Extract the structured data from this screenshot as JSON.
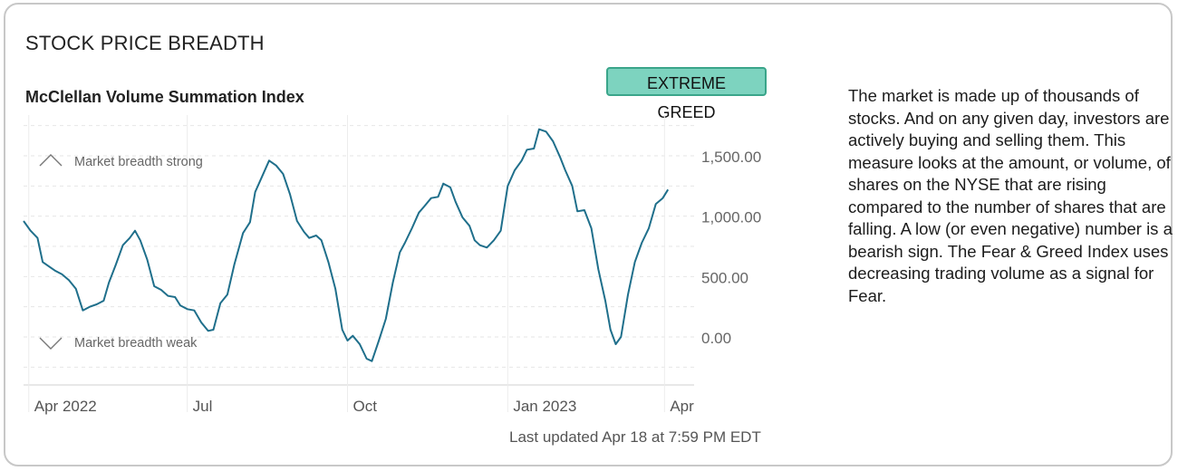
{
  "header": {
    "section_title": "STOCK PRICE BREADTH",
    "chart_title": "McClellan Volume Summation Index",
    "rating_badge": "EXTREME GREED",
    "badge_bg": "#7dd3bf",
    "badge_border": "#3aa58a"
  },
  "footer": {
    "last_updated": "Last updated Apr 18 at 7:59 PM EDT"
  },
  "description": "The market is made up of thousands of stocks. And on any given day, investors are actively buying and selling them. This measure looks at the amount, or volume, of shares on the NYSE that are rising compared to the number of shares that are falling. A low (or even negative) number is a bearish sign. The Fear & Greed Index uses decreasing trading volume as a signal for Fear.",
  "chart_data": {
    "type": "line",
    "title": "McClellan Volume Summation Index",
    "line_color": "#1f6f8b",
    "ylim": [
      -400,
      1800
    ],
    "y_ticks": [
      {
        "value": 0,
        "label": "0.00"
      },
      {
        "value": 500,
        "label": "500.00"
      },
      {
        "value": 1000,
        "label": "1,000.00"
      },
      {
        "value": 1500,
        "label": "1,500.00"
      }
    ],
    "x_ticks": [
      {
        "date": "2022-04-01",
        "label": "Apr 2022"
      },
      {
        "date": "2022-07-01",
        "label": "Jul"
      },
      {
        "date": "2022-10-01",
        "label": "Oct"
      },
      {
        "date": "2023-01-01",
        "label": "Jan 2023"
      },
      {
        "date": "2023-04-01",
        "label": "Apr"
      }
    ],
    "x_range": [
      "2022-03-29",
      "2023-04-18"
    ],
    "annotations": {
      "strong": "Market breadth strong",
      "weak": "Market breadth weak"
    },
    "series": [
      {
        "values": [
          [
            "2022-03-29",
            960
          ],
          [
            "2022-04-02",
            880
          ],
          [
            "2022-04-06",
            820
          ],
          [
            "2022-04-09",
            620
          ],
          [
            "2022-04-13",
            580
          ],
          [
            "2022-04-16",
            550
          ],
          [
            "2022-04-20",
            520
          ],
          [
            "2022-04-24",
            470
          ],
          [
            "2022-04-28",
            400
          ],
          [
            "2022-05-02",
            220
          ],
          [
            "2022-05-06",
            250
          ],
          [
            "2022-05-10",
            270
          ],
          [
            "2022-05-14",
            300
          ],
          [
            "2022-05-17",
            450
          ],
          [
            "2022-05-21",
            600
          ],
          [
            "2022-05-25",
            760
          ],
          [
            "2022-05-29",
            820
          ],
          [
            "2022-06-01",
            880
          ],
          [
            "2022-06-04",
            800
          ],
          [
            "2022-06-08",
            640
          ],
          [
            "2022-06-12",
            420
          ],
          [
            "2022-06-16",
            390
          ],
          [
            "2022-06-20",
            340
          ],
          [
            "2022-06-24",
            330
          ],
          [
            "2022-06-27",
            260
          ],
          [
            "2022-07-01",
            230
          ],
          [
            "2022-07-05",
            220
          ],
          [
            "2022-07-09",
            120
          ],
          [
            "2022-07-13",
            50
          ],
          [
            "2022-07-16",
            60
          ],
          [
            "2022-07-20",
            280
          ],
          [
            "2022-07-24",
            350
          ],
          [
            "2022-07-28",
            600
          ],
          [
            "2022-08-02",
            860
          ],
          [
            "2022-08-06",
            950
          ],
          [
            "2022-08-09",
            1200
          ],
          [
            "2022-08-13",
            1330
          ],
          [
            "2022-08-17",
            1460
          ],
          [
            "2022-08-21",
            1420
          ],
          [
            "2022-08-25",
            1350
          ],
          [
            "2022-08-29",
            1180
          ],
          [
            "2022-09-02",
            960
          ],
          [
            "2022-09-06",
            870
          ],
          [
            "2022-09-09",
            820
          ],
          [
            "2022-09-13",
            840
          ],
          [
            "2022-09-16",
            800
          ],
          [
            "2022-09-20",
            620
          ],
          [
            "2022-09-24",
            400
          ],
          [
            "2022-09-28",
            60
          ],
          [
            "2022-10-01",
            -30
          ],
          [
            "2022-10-04",
            10
          ],
          [
            "2022-10-08",
            -60
          ],
          [
            "2022-10-12",
            -180
          ],
          [
            "2022-10-15",
            -200
          ],
          [
            "2022-10-19",
            -30
          ],
          [
            "2022-10-23",
            150
          ],
          [
            "2022-10-27",
            450
          ],
          [
            "2022-10-31",
            700
          ],
          [
            "2022-11-03",
            780
          ],
          [
            "2022-11-07",
            900
          ],
          [
            "2022-11-11",
            1030
          ],
          [
            "2022-11-14",
            1080
          ],
          [
            "2022-11-18",
            1150
          ],
          [
            "2022-11-22",
            1160
          ],
          [
            "2022-11-25",
            1270
          ],
          [
            "2022-11-29",
            1240
          ],
          [
            "2022-12-02",
            1120
          ],
          [
            "2022-12-06",
            990
          ],
          [
            "2022-12-10",
            920
          ],
          [
            "2022-12-13",
            800
          ],
          [
            "2022-12-16",
            760
          ],
          [
            "2022-12-20",
            740
          ],
          [
            "2022-12-24",
            800
          ],
          [
            "2022-12-28",
            880
          ],
          [
            "2023-01-01",
            1250
          ],
          [
            "2023-01-05",
            1380
          ],
          [
            "2023-01-09",
            1460
          ],
          [
            "2023-01-12",
            1550
          ],
          [
            "2023-01-16",
            1560
          ],
          [
            "2023-01-19",
            1720
          ],
          [
            "2023-01-23",
            1700
          ],
          [
            "2023-01-27",
            1620
          ],
          [
            "2023-01-31",
            1490
          ],
          [
            "2023-02-03",
            1380
          ],
          [
            "2023-02-07",
            1250
          ],
          [
            "2023-02-10",
            1040
          ],
          [
            "2023-02-14",
            1050
          ],
          [
            "2023-02-18",
            900
          ],
          [
            "2023-02-22",
            560
          ],
          [
            "2023-02-26",
            300
          ],
          [
            "2023-03-01",
            60
          ],
          [
            "2023-03-04",
            -60
          ],
          [
            "2023-03-07",
            0
          ],
          [
            "2023-03-11",
            350
          ],
          [
            "2023-03-15",
            620
          ],
          [
            "2023-03-19",
            780
          ],
          [
            "2023-03-23",
            900
          ],
          [
            "2023-03-27",
            1100
          ],
          [
            "2023-03-31",
            1150
          ],
          [
            "2023-04-03",
            1220
          ]
        ]
      }
    ]
  }
}
